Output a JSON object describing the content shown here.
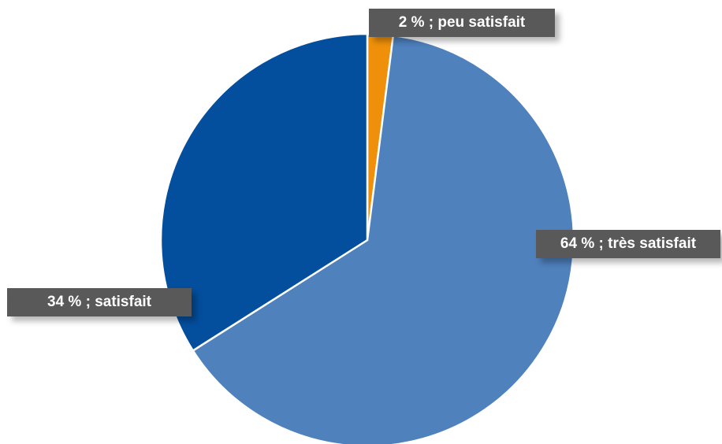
{
  "chart_data": {
    "type": "pie",
    "start_angle_deg": 0,
    "direction": "clockwise",
    "slices": [
      {
        "label": "2 % ; peu satisfait",
        "category": "peu satisfait",
        "value": 2,
        "color": "#f0900a"
      },
      {
        "label": "64 % ; très satisfait",
        "category": "très satisfait",
        "value": 64,
        "color": "#4f81bd"
      },
      {
        "label": "34 % ; satisfait",
        "category": "satisfait",
        "value": 34,
        "color": "#034f9e"
      }
    ],
    "title": "",
    "legend": "none"
  }
}
